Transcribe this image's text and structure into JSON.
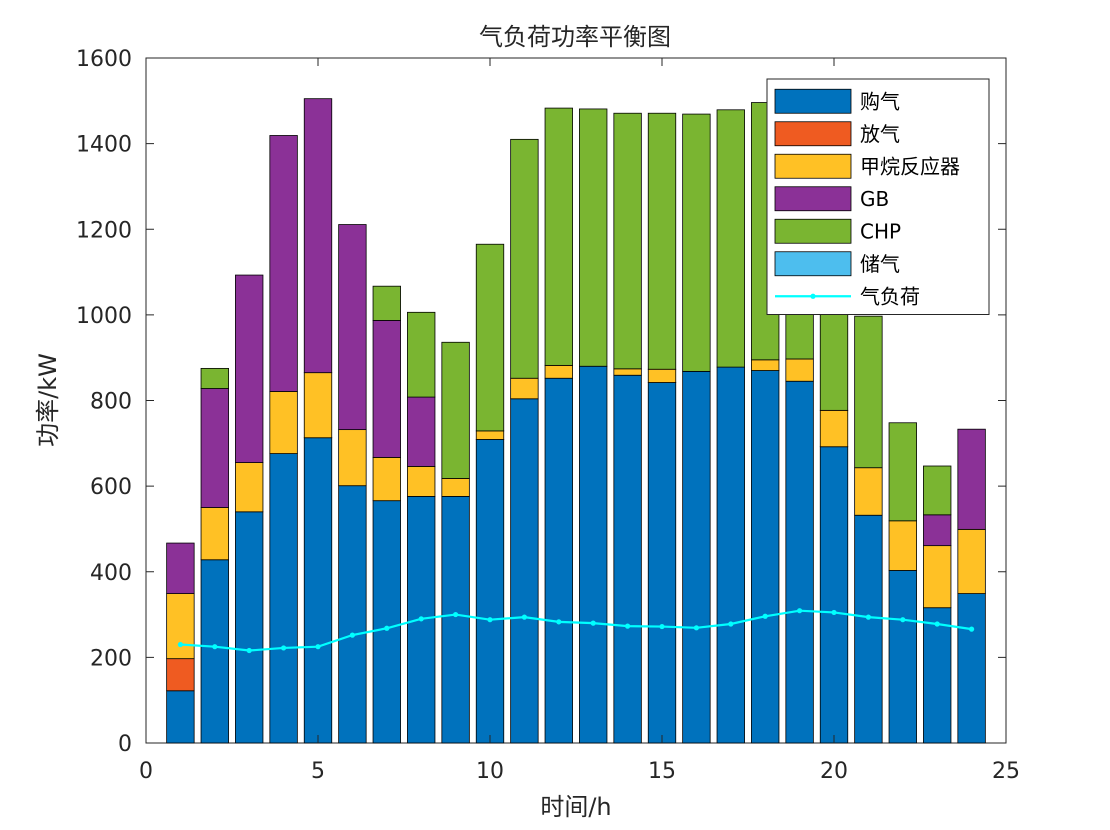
{
  "chart_data": {
    "type": "bar",
    "stacked": true,
    "title": "气负荷功率平衡图",
    "xlabel": "时间/h",
    "ylabel": "功率/kW",
    "xlim": [
      0,
      25
    ],
    "ylim": [
      0,
      1600
    ],
    "xticks": [
      0,
      5,
      10,
      15,
      20,
      25
    ],
    "yticks": [
      0,
      200,
      400,
      600,
      800,
      1000,
      1200,
      1400,
      1600
    ],
    "grid": false,
    "legend_position": "top-right",
    "x": [
      1,
      2,
      3,
      4,
      5,
      6,
      7,
      8,
      9,
      10,
      11,
      12,
      13,
      14,
      15,
      16,
      17,
      18,
      19,
      20,
      21,
      22,
      23,
      24
    ],
    "series": [
      {
        "name": "购气",
        "color": "#0072BD",
        "values": [
          122,
          428,
          540,
          676,
          713,
          601,
          566,
          576,
          576,
          709,
          804,
          852,
          880,
          859,
          842,
          868,
          878,
          870,
          845,
          692,
          532,
          403,
          316,
          349
        ]
      },
      {
        "name": "放气",
        "color": "#EF5B21",
        "values": [
          75,
          0,
          0,
          0,
          0,
          0,
          0,
          0,
          0,
          0,
          0,
          0,
          0,
          0,
          0,
          0,
          0,
          0,
          0,
          0,
          0,
          0,
          0,
          0
        ]
      },
      {
        "name": "甲烷反应器",
        "color": "#FFC125",
        "values": [
          152,
          122,
          115,
          145,
          152,
          131,
          101,
          70,
          42,
          20,
          48,
          30,
          0,
          15,
          31,
          0,
          0,
          25,
          52,
          85,
          111,
          116,
          145,
          150
        ]
      },
      {
        "name": "GB",
        "color": "#8B3197",
        "values": [
          118,
          278,
          438,
          598,
          640,
          479,
          320,
          162,
          0,
          0,
          0,
          0,
          0,
          0,
          0,
          0,
          0,
          0,
          0,
          0,
          0,
          0,
          72,
          234
        ]
      },
      {
        "name": "CHP",
        "color": "#7AB531",
        "values": [
          0,
          47,
          0,
          0,
          0,
          0,
          80,
          198,
          318,
          436,
          558,
          601,
          601,
          597,
          598,
          601,
          601,
          601,
          601,
          601,
          354,
          229,
          114,
          0
        ]
      },
      {
        "name": "储气",
        "color": "#4DBEEE",
        "values": [
          0,
          0,
          0,
          0,
          0,
          0,
          0,
          0,
          0,
          0,
          0,
          0,
          0,
          0,
          0,
          0,
          0,
          0,
          0,
          0,
          0,
          0,
          0,
          0
        ]
      }
    ],
    "line_series": {
      "name": "气负荷",
      "color": "#00FFFF",
      "x": [
        1,
        2,
        3,
        4,
        5,
        6,
        7,
        8,
        9,
        10,
        11,
        12,
        13,
        14,
        15,
        16,
        17,
        18,
        19,
        20,
        21,
        22,
        23,
        24
      ],
      "values": [
        230,
        225,
        216,
        222,
        225,
        252,
        268,
        290,
        300,
        288,
        294,
        283,
        280,
        273,
        272,
        269,
        278,
        296,
        309,
        305,
        294,
        288,
        278,
        266
      ]
    }
  }
}
